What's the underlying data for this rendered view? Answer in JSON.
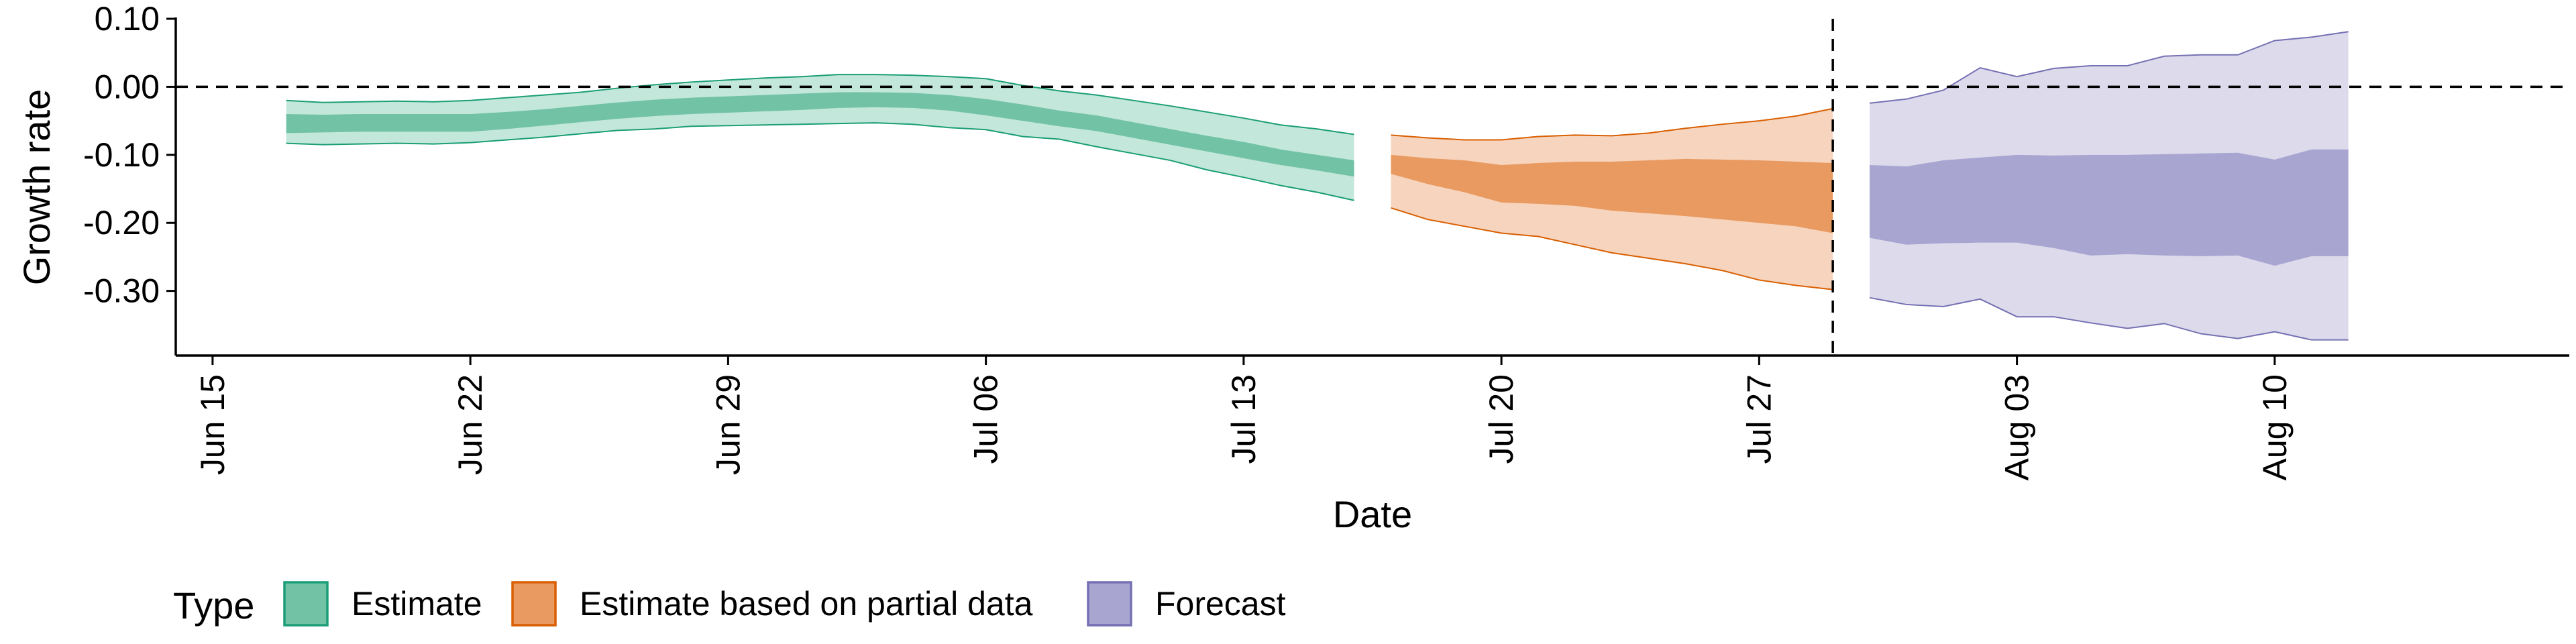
{
  "chart_data": {
    "type": "area",
    "xlabel": "Date",
    "ylabel": "Growth rate",
    "x_tick_labels": [
      "Jun 15",
      "Jun 22",
      "Jun 29",
      "Jul 06",
      "Jul 13",
      "Jul 20",
      "Jul 27",
      "Aug 03",
      "Aug 10"
    ],
    "x_tick_dates": [
      "2020-06-15",
      "2020-06-22",
      "2020-06-29",
      "2020-07-06",
      "2020-07-13",
      "2020-07-20",
      "2020-07-27",
      "2020-08-03",
      "2020-08-10"
    ],
    "y_tick_labels": [
      "0.10",
      "0.00",
      "-0.10",
      "-0.20",
      "-0.30"
    ],
    "y_ticks": [
      0.1,
      0.0,
      -0.1,
      -0.2,
      -0.3
    ],
    "xlim": [
      "2020-06-14",
      "2020-08-18"
    ],
    "ylim": [
      -0.395,
      0.1
    ],
    "grid": false,
    "reference_lines": [
      {
        "orientation": "horizontal",
        "value": 0.0,
        "style": "dashed"
      },
      {
        "orientation": "vertical",
        "value": "2020-07-29",
        "style": "dashed"
      }
    ],
    "legend": {
      "title": "Type",
      "position": "bottom-left",
      "entries": [
        "Estimate",
        "Estimate based on partial data",
        "Forecast"
      ]
    },
    "series": [
      {
        "name": "Estimate",
        "color_outer": "#c3e7da",
        "color_inner": "#72c3a6",
        "color_line": "#1b9e77",
        "x": [
          "2020-06-17",
          "2020-06-18",
          "2020-06-19",
          "2020-06-20",
          "2020-06-21",
          "2020-06-22",
          "2020-06-23",
          "2020-06-24",
          "2020-06-25",
          "2020-06-26",
          "2020-06-27",
          "2020-06-28",
          "2020-06-29",
          "2020-06-30",
          "2020-07-01",
          "2020-07-02",
          "2020-07-03",
          "2020-07-04",
          "2020-07-05",
          "2020-07-06",
          "2020-07-07",
          "2020-07-08",
          "2020-07-09",
          "2020-07-10",
          "2020-07-11",
          "2020-07-12",
          "2020-07-13",
          "2020-07-14",
          "2020-07-15",
          "2020-07-16"
        ],
        "outer_upper": [
          -0.02,
          -0.023,
          -0.022,
          -0.021,
          -0.022,
          -0.02,
          -0.016,
          -0.012,
          -0.008,
          -0.002,
          0.003,
          0.007,
          0.01,
          0.013,
          0.015,
          0.018,
          0.018,
          0.017,
          0.015,
          0.012,
          0.002,
          -0.006,
          -0.012,
          -0.02,
          -0.028,
          -0.037,
          -0.046,
          -0.056,
          -0.062,
          -0.07
        ],
        "inner_upper": [
          -0.04,
          -0.041,
          -0.04,
          -0.04,
          -0.04,
          -0.04,
          -0.037,
          -0.033,
          -0.028,
          -0.023,
          -0.019,
          -0.016,
          -0.014,
          -0.012,
          -0.01,
          -0.008,
          -0.008,
          -0.009,
          -0.012,
          -0.018,
          -0.026,
          -0.035,
          -0.042,
          -0.052,
          -0.062,
          -0.072,
          -0.081,
          -0.092,
          -0.1,
          -0.108
        ],
        "inner_lower": [
          -0.068,
          -0.067,
          -0.066,
          -0.066,
          -0.066,
          -0.066,
          -0.062,
          -0.057,
          -0.052,
          -0.047,
          -0.043,
          -0.04,
          -0.038,
          -0.036,
          -0.034,
          -0.031,
          -0.03,
          -0.031,
          -0.035,
          -0.042,
          -0.05,
          -0.058,
          -0.065,
          -0.075,
          -0.085,
          -0.095,
          -0.105,
          -0.115,
          -0.123,
          -0.132
        ],
        "outer_lower": [
          -0.083,
          -0.085,
          -0.084,
          -0.083,
          -0.084,
          -0.082,
          -0.078,
          -0.074,
          -0.069,
          -0.064,
          -0.062,
          -0.058,
          -0.057,
          -0.056,
          -0.055,
          -0.054,
          -0.053,
          -0.055,
          -0.06,
          -0.063,
          -0.073,
          -0.077,
          -0.088,
          -0.098,
          -0.108,
          -0.122,
          -0.133,
          -0.145,
          -0.155,
          -0.167
        ]
      },
      {
        "name": "Estimate based on partial data",
        "color_outer": "#f6d4bd",
        "color_inner": "#e99a61",
        "color_line": "#d95f02",
        "x": [
          "2020-07-17",
          "2020-07-18",
          "2020-07-19",
          "2020-07-20",
          "2020-07-21",
          "2020-07-22",
          "2020-07-23",
          "2020-07-24",
          "2020-07-25",
          "2020-07-26",
          "2020-07-27",
          "2020-07-28",
          "2020-07-29"
        ],
        "outer_upper": [
          -0.071,
          -0.075,
          -0.078,
          -0.078,
          -0.073,
          -0.071,
          -0.072,
          -0.068,
          -0.061,
          -0.055,
          -0.05,
          -0.043,
          -0.032
        ],
        "inner_upper": [
          -0.1,
          -0.105,
          -0.108,
          -0.115,
          -0.112,
          -0.11,
          -0.11,
          -0.108,
          -0.106,
          -0.107,
          -0.108,
          -0.11,
          -0.112
        ],
        "inner_lower": [
          -0.128,
          -0.143,
          -0.155,
          -0.17,
          -0.172,
          -0.175,
          -0.182,
          -0.186,
          -0.19,
          -0.195,
          -0.2,
          -0.205,
          -0.215
        ],
        "outer_lower": [
          -0.178,
          -0.195,
          -0.205,
          -0.215,
          -0.22,
          -0.232,
          -0.244,
          -0.252,
          -0.26,
          -0.27,
          -0.284,
          -0.292,
          -0.298
        ]
      },
      {
        "name": "Forecast",
        "color_outer": "#dcdaeb",
        "color_inner": "#a8a5d1",
        "color_line": "#7570b3",
        "x": [
          "2020-07-30",
          "2020-07-31",
          "2020-08-01",
          "2020-08-02",
          "2020-08-03",
          "2020-08-04",
          "2020-08-05",
          "2020-08-06",
          "2020-08-07",
          "2020-08-08",
          "2020-08-09",
          "2020-08-10",
          "2020-08-11",
          "2020-08-12"
        ],
        "outer_upper": [
          -0.024,
          -0.018,
          -0.005,
          0.028,
          0.015,
          0.027,
          0.031,
          0.031,
          0.045,
          0.047,
          0.047,
          0.068,
          0.073,
          0.081
        ],
        "inner_upper": [
          -0.115,
          -0.117,
          -0.108,
          -0.104,
          -0.1,
          -0.101,
          -0.1,
          -0.1,
          -0.099,
          -0.098,
          -0.097,
          -0.107,
          -0.092,
          -0.092
        ],
        "inner_lower": [
          -0.222,
          -0.232,
          -0.23,
          -0.229,
          -0.229,
          -0.237,
          -0.248,
          -0.246,
          -0.248,
          -0.249,
          -0.248,
          -0.263,
          -0.249,
          -0.249
        ],
        "outer_lower": [
          -0.31,
          -0.32,
          -0.323,
          -0.312,
          -0.338,
          -0.338,
          -0.347,
          -0.355,
          -0.348,
          -0.363,
          -0.37,
          -0.36,
          -0.372,
          -0.372
        ]
      }
    ]
  }
}
